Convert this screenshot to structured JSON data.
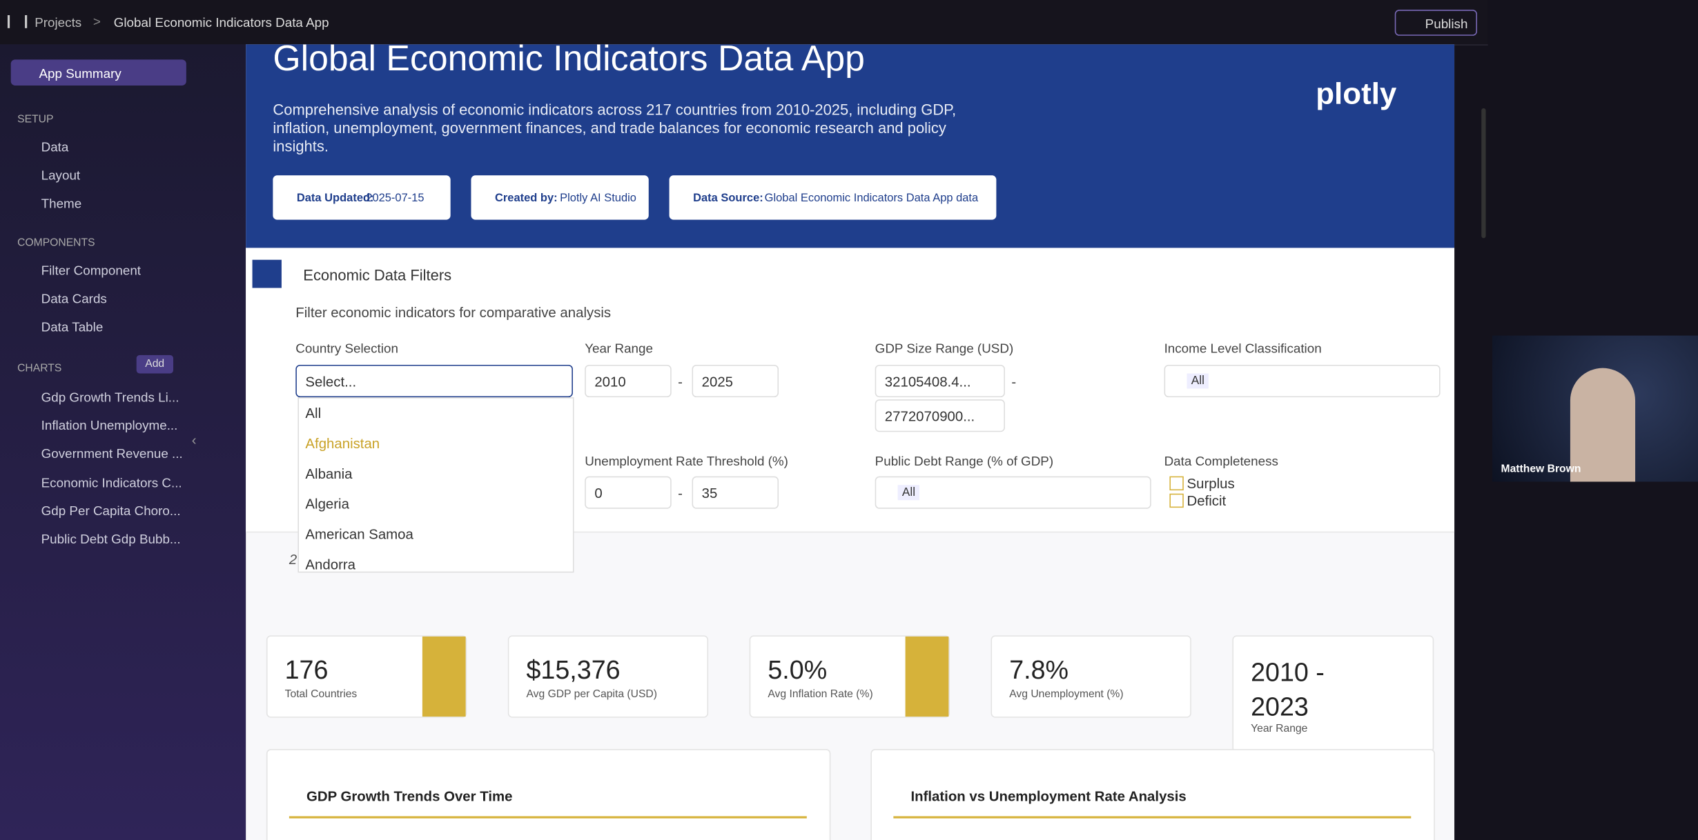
{
  "topbar": {
    "breadcrumb": [
      "Projects",
      "Global Economic Indicators Data App"
    ],
    "publish": "Publish"
  },
  "sidebar": {
    "app_summary": "App Summary",
    "sections": [
      {
        "title": "SETUP",
        "items": [
          "Data",
          "Layout",
          "Theme"
        ]
      },
      {
        "title": "COMPONENTS",
        "items": [
          "Filter Component",
          "Data Cards",
          "Data Table"
        ]
      },
      {
        "title": "CHARTS",
        "add": "Add",
        "items": [
          "Gdp Growth Trends Li...",
          "Inflation Unemployme...",
          "Government Revenue ...",
          "Economic Indicators C...",
          "Gdp Per Capita Choro...",
          "Public Debt Gdp Bubb..."
        ]
      }
    ]
  },
  "header": {
    "title": "Global Economic Indicators Data App",
    "description": "Comprehensive analysis of economic indicators across 217 countries from 2010-2025, including GDP, inflation, unemployment, government finances, and trade balances for economic research and policy insights.",
    "logo": "plotly",
    "badges": [
      {
        "label": "Data Updated:",
        "value": "2025-07-15"
      },
      {
        "label": "Created by:",
        "value": "Plotly AI Studio"
      },
      {
        "label": "Data Source:",
        "value": "Global Economic Indicators Data App data"
      }
    ]
  },
  "filters": {
    "title": "Economic Data Filters",
    "subtitle": "Filter economic indicators for comparative analysis",
    "country": {
      "label": "Country Selection",
      "placeholder": "Select...",
      "options": [
        "All",
        "Afghanistan",
        "Albania",
        "Algeria",
        "American Samoa",
        "Andorra"
      ]
    },
    "year_range": {
      "label": "Year Range",
      "from": "2010",
      "to": "2025"
    },
    "gdp_range": {
      "label": "GDP Size Range (USD)",
      "from": "32105408.4...",
      "to": "2772070900..."
    },
    "income": {
      "label": "Income Level Classification",
      "chip": "All"
    },
    "unemployment": {
      "label": "Unemployment Rate Threshold (%)",
      "from": "0",
      "to": "35"
    },
    "debt": {
      "label": "Public Debt Range (% of GDP)",
      "chip": "All"
    },
    "completeness": {
      "label": "Data Completeness",
      "options": [
        "Surplus",
        "Deficit"
      ]
    },
    "separator": "-",
    "stray": "2"
  },
  "cards": [
    {
      "value": "176",
      "label": "Total Countries"
    },
    {
      "value": "$15,376",
      "label": "Avg GDP per Capita (USD)"
    },
    {
      "value": "5.0%",
      "label": "Avg Inflation Rate (%)"
    },
    {
      "value": "7.8%",
      "label": "Avg Unemployment (%)"
    },
    {
      "value": "2010 - 2023",
      "label": "Year Range"
    }
  ],
  "charts": [
    "GDP Growth Trends Over Time",
    "Inflation vs Unemployment Rate Analysis"
  ],
  "video": {
    "name": "Matthew Brown"
  }
}
